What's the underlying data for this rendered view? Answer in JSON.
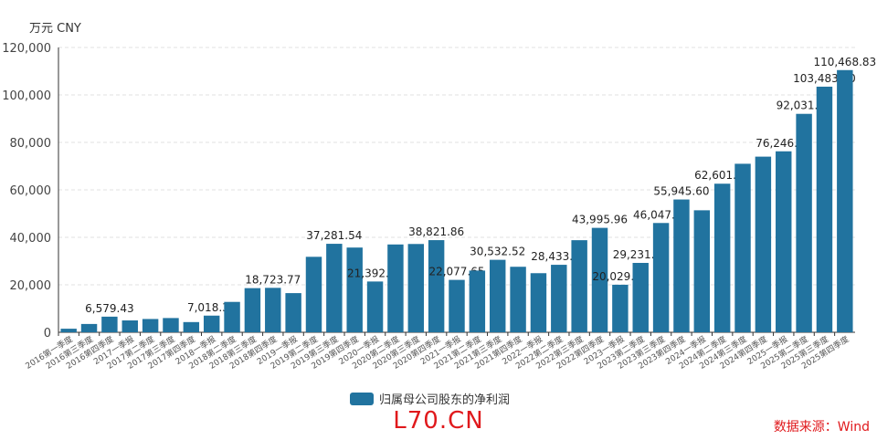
{
  "unit_label": "万元  CNY",
  "legend": {
    "label": "归属母公司股东的净利润",
    "color": "#21739f"
  },
  "watermark": {
    "text": "L70.CN",
    "color": "#e0191c"
  },
  "source": {
    "text": "数据来源：Wind",
    "color": "#e0191c"
  },
  "chart_data": {
    "type": "bar",
    "ylim": [
      0,
      120000
    ],
    "yticks": [
      "0",
      "20,000",
      "40,000",
      "60,000",
      "80,000",
      "100,000",
      "120,000"
    ],
    "grid": true,
    "bar_color": "#21739f",
    "categories": [
      "2016第一季度",
      "2016第三季度",
      "2016第四季度",
      "2017一季报",
      "2017第二季度",
      "2017第三季度",
      "2017第四季度",
      "2018一季报",
      "2018第二季度",
      "2018第三季度",
      "2018第四季度",
      "2019一季报",
      "2019第二季度",
      "2019第三季度",
      "2019第四季度",
      "2020一季报",
      "2020第二季度",
      "2020第三季度",
      "2020第四季度",
      "2021一季报",
      "2021第二季度",
      "2021第三季度",
      "2021第四季度",
      "2022一季报",
      "2022第二季度",
      "2022第三季度",
      "2022第四季度",
      "2023一季报",
      "2023第二季度",
      "2023第三季度",
      "2023第四季度",
      "2024一季报",
      "2024第二季度",
      "2024第三季度",
      "2024第四季度",
      "2025一季报",
      "2025第二季度",
      "2025第三季度",
      "2025第四季度"
    ],
    "series": [
      {
        "name": "归属母公司股东的净利润",
        "values": [
          1500,
          3500,
          6579.43,
          5000,
          5600,
          6000,
          4300,
          7018.33,
          12800,
          18600,
          18723.77,
          16500,
          31800,
          37281.54,
          35700,
          21392.34,
          37000,
          37200,
          38821.86,
          22077.65,
          26000,
          30532.52,
          27600,
          24900,
          28433.85,
          38800,
          43995.96,
          20029.28,
          29231.31,
          46047.64,
          55945.6,
          51400,
          62601.83,
          71000,
          74000,
          76246.54,
          92031.55,
          103483.7,
          110468.83
        ],
        "labels": [
          "",
          "",
          "6,579.43",
          "",
          "",
          "",
          "",
          "7,018.33",
          "",
          "",
          "18,723.77",
          "",
          "",
          "37,281.54",
          "",
          "21,392.34",
          "",
          "",
          "38,821.86",
          "22,077.65",
          "",
          "30,532.52",
          "",
          "",
          "28,433.85",
          "",
          "43,995.96",
          "20,029.28",
          "29,231.31",
          "46,047.64",
          "55,945.60",
          "",
          "62,601.83",
          "",
          "",
          "76,246.54",
          "92,031.55",
          "103,483.70",
          "110,468.83"
        ]
      }
    ]
  }
}
